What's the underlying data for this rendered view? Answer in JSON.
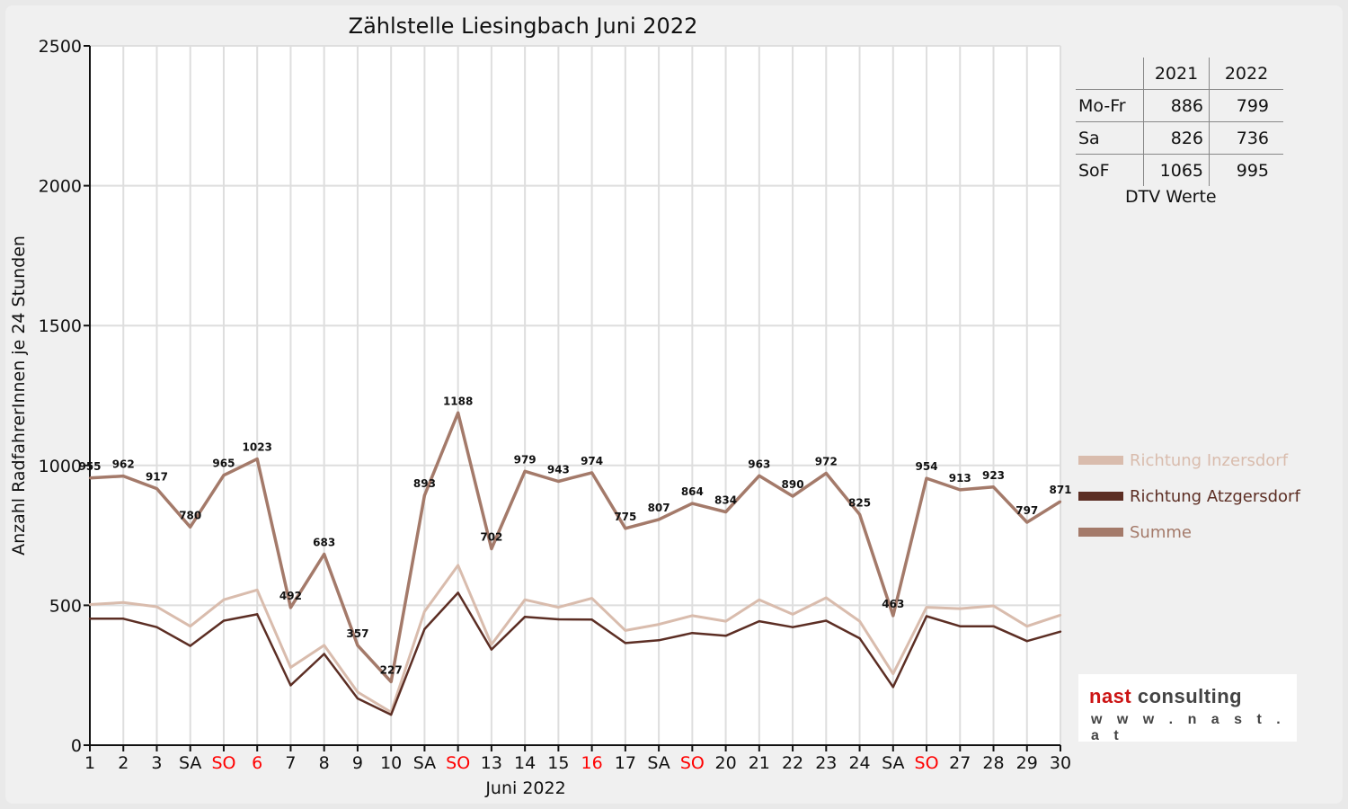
{
  "colors": {
    "inzersdorf": "#d9bcad",
    "atzgersdorf": "#5c2e24",
    "summe": "#a47a6a",
    "highlight": "#ff0000",
    "logo_red": "#cc1414",
    "logo_dark": "#444444"
  },
  "chart_data": {
    "type": "line",
    "title": "Zählstelle Liesingbach Juni 2022",
    "xlabel": "Juni 2022",
    "ylabel": "Anzahl RadfahrerInnen je 24 Stunden",
    "ylim": [
      0,
      2500
    ],
    "yticks": [
      0,
      500,
      1000,
      1500,
      2000,
      2500
    ],
    "grid": true,
    "legend_position": "right",
    "x": [
      1,
      2,
      3,
      4,
      5,
      6,
      7,
      8,
      9,
      10,
      11,
      12,
      13,
      14,
      15,
      16,
      17,
      18,
      19,
      20,
      21,
      22,
      23,
      24,
      25,
      26,
      27,
      28,
      29,
      30
    ],
    "tick_labels": [
      "1",
      "2",
      "3",
      "SA",
      "SO",
      "6",
      "7",
      "8",
      "9",
      "10",
      "SA",
      "SO",
      "13",
      "14",
      "15",
      "16",
      "17",
      "SA",
      "SO",
      "20",
      "21",
      "22",
      "23",
      "24",
      "SA",
      "SO",
      "27",
      "28",
      "29",
      "30"
    ],
    "red_ticks": [
      5,
      6,
      12,
      16,
      19,
      26
    ],
    "series": [
      {
        "name": "Richtung Inzersdorf",
        "color_key": "inzersdorf",
        "values": [
          503,
          510,
          495,
          425,
          520,
          555,
          278,
          357,
          190,
          118,
          478,
          643,
          360,
          520,
          493,
          525,
          410,
          432,
          463,
          443,
          520,
          468,
          527,
          443,
          255,
          493,
          488,
          498,
          425,
          465
        ]
      },
      {
        "name": "Richtung Atzgersdorf",
        "color_key": "atzgersdorf",
        "values": [
          452,
          452,
          422,
          355,
          445,
          468,
          214,
          326,
          167,
          109,
          415,
          545,
          342,
          459,
          450,
          449,
          365,
          375,
          401,
          391,
          443,
          422,
          445,
          382,
          208,
          461,
          425,
          425,
          372,
          406
        ]
      },
      {
        "name": "Summe",
        "color_key": "summe",
        "values": [
          955,
          962,
          917,
          780,
          965,
          1023,
          492,
          683,
          357,
          227,
          893,
          1188,
          702,
          979,
          943,
          974,
          775,
          807,
          864,
          834,
          963,
          890,
          972,
          825,
          463,
          954,
          913,
          923,
          797,
          871
        ]
      }
    ],
    "data_labels": [
      "955",
      "962",
      "917",
      "780",
      "965",
      "1023",
      "492",
      "683",
      "357",
      "227",
      "893",
      "1188",
      "702",
      "979",
      "943",
      "974",
      "775",
      "807",
      "864",
      "834",
      "963",
      "890",
      "972",
      "825",
      "463",
      "954",
      "913",
      "923",
      "797",
      "871"
    ]
  },
  "dtv": {
    "headers": [
      "2021",
      "2022"
    ],
    "rows": [
      {
        "label": "Mo-Fr",
        "v2021": "886",
        "v2022": "799"
      },
      {
        "label": "Sa",
        "v2021": "826",
        "v2022": "736"
      },
      {
        "label": "SoF",
        "v2021": "1065",
        "v2022": "995"
      }
    ],
    "caption": "DTV Werte"
  },
  "logo": {
    "part1": "nast",
    "part2": " consulting",
    "url": "w w w . n a s t . a t"
  }
}
